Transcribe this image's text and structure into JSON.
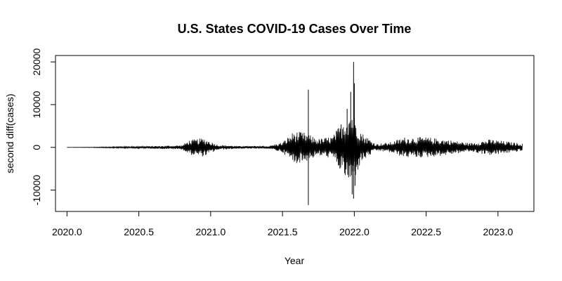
{
  "chart_data": {
    "type": "line",
    "title": "U.S. States COVID-19 Cases Over Time",
    "xlabel": "Year",
    "ylabel": "second diff(cases)",
    "xlim": [
      2019.92,
      3023.25
    ],
    "ylim": [
      -15000,
      21500
    ],
    "xticks": [
      2020.0,
      2020.5,
      2021.0,
      2021.5,
      2022.0,
      2022.5,
      2023.0
    ],
    "xtick_labels": [
      "2020.0",
      "2020.5",
      "2021.0",
      "2021.5",
      "2022.0",
      "2022.5",
      "2023.0"
    ],
    "yticks": [
      -10000,
      0,
      10000,
      20000
    ],
    "ytick_labels": [
      "-10000",
      "0",
      "10000",
      "20000"
    ],
    "grid": false,
    "legend": "none",
    "line_color": "#000000",
    "envelope": [
      {
        "x": 2020.0,
        "amp": 10
      },
      {
        "x": 2020.2,
        "amp": 80
      },
      {
        "x": 2020.4,
        "amp": 200
      },
      {
        "x": 2020.6,
        "amp": 300
      },
      {
        "x": 2020.8,
        "amp": 500
      },
      {
        "x": 2020.85,
        "amp": 1700
      },
      {
        "x": 2020.95,
        "amp": 2200
      },
      {
        "x": 2021.05,
        "amp": 600
      },
      {
        "x": 2021.2,
        "amp": 300
      },
      {
        "x": 2021.4,
        "amp": 300
      },
      {
        "x": 2021.5,
        "amp": 1200
      },
      {
        "x": 2021.58,
        "amp": 3800
      },
      {
        "x": 2021.65,
        "amp": 3500
      },
      {
        "x": 2021.75,
        "amp": 2000
      },
      {
        "x": 2021.85,
        "amp": 2600
      },
      {
        "x": 2021.92,
        "amp": 6500
      },
      {
        "x": 2021.98,
        "amp": 9000
      },
      {
        "x": 2022.05,
        "amp": 3500
      },
      {
        "x": 2022.15,
        "amp": 800
      },
      {
        "x": 2022.25,
        "amp": 1200
      },
      {
        "x": 2022.35,
        "amp": 2400
      },
      {
        "x": 2022.5,
        "amp": 2400
      },
      {
        "x": 2022.65,
        "amp": 1800
      },
      {
        "x": 2022.8,
        "amp": 1000
      },
      {
        "x": 2022.95,
        "amp": 1900
      },
      {
        "x": 2023.1,
        "amp": 1200
      },
      {
        "x": 2023.17,
        "amp": 900
      }
    ],
    "spikes": [
      {
        "x": 2021.68,
        "y": 13500
      },
      {
        "x": 2021.68,
        "y": -13500
      },
      {
        "x": 2021.995,
        "y": 20000
      },
      {
        "x": 2021.995,
        "y": -12000
      },
      {
        "x": 2022.0,
        "y": 15000
      },
      {
        "x": 2021.975,
        "y": 13000
      },
      {
        "x": 2021.985,
        "y": -11000
      },
      {
        "x": 2022.005,
        "y": -9000
      },
      {
        "x": 2021.95,
        "y": 9000
      },
      {
        "x": 2021.96,
        "y": -7000
      }
    ],
    "x_start": 2020.0,
    "x_end": 2023.17
  }
}
